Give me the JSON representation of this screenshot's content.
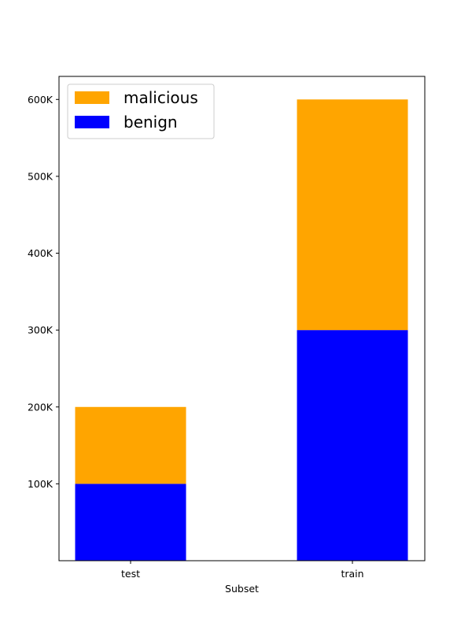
{
  "chart_data": {
    "type": "bar",
    "stacked": true,
    "categories": [
      "test",
      "train"
    ],
    "series": [
      {
        "name": "benign",
        "values": [
          100000,
          300000
        ],
        "color": "#0000ff"
      },
      {
        "name": "malicious",
        "values": [
          100000,
          300000
        ],
        "color": "#ffa500"
      }
    ],
    "xlabel": "Subset",
    "ylabel": "",
    "ylim": [
      0,
      630000
    ],
    "yticks": [
      100000,
      200000,
      300000,
      400000,
      500000,
      600000
    ],
    "ytick_labels": [
      "100K",
      "200K",
      "300K",
      "400K",
      "500K",
      "600K"
    ],
    "grid": false,
    "legend": {
      "position": "top-left",
      "entries": [
        "malicious",
        "benign"
      ]
    }
  }
}
